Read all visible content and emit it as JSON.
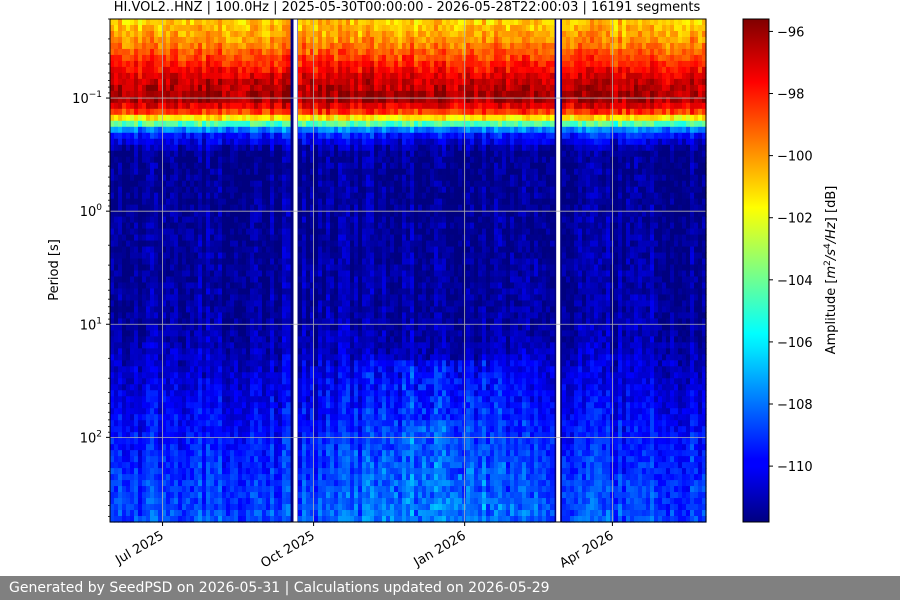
{
  "chart_data": {
    "type": "heatmap",
    "title": "HI.VOL2..HNZ | 100.0Hz | 2025-05-30T00:00:00 - 2026-05-28T22:00:03 | 16191 segments",
    "ylabel": "Period [s]",
    "colorbar_label_parts": [
      "Amplitude [",
      "m",
      "2",
      "/",
      "s",
      "4",
      "/",
      "Hz",
      "] [dB]"
    ],
    "x_ticks": [
      "Jul 2025",
      "Oct 2025",
      "Jan 2026",
      "Apr 2026"
    ],
    "x_range": [
      "2025-05-30",
      "2026-05-28"
    ],
    "y_scale": "log",
    "y_range": [
      0.02,
      560
    ],
    "y_ticks": [
      {
        "base": "10",
        "exp": "−1",
        "value": 0.1
      },
      {
        "base": "10",
        "exp": "0",
        "value": 1
      },
      {
        "base": "10",
        "exp": "1",
        "value": 10
      },
      {
        "base": "10",
        "exp": "2",
        "value": 100
      }
    ],
    "colorbar_ticks": [
      {
        "label": "−96",
        "value": -96
      },
      {
        "label": "−98",
        "value": -98
      },
      {
        "label": "−100",
        "value": -100
      },
      {
        "label": "−102",
        "value": -102
      },
      {
        "label": "−104",
        "value": -104
      },
      {
        "label": "−106",
        "value": -106
      },
      {
        "label": "−108",
        "value": -108
      },
      {
        "label": "−110",
        "value": -110
      }
    ],
    "color_range": [
      -111.8,
      -95.6
    ],
    "colormap": "jet",
    "grid": true,
    "data_gaps": [
      "2025-09-20",
      "2026-02-27"
    ],
    "amplitude_profile_by_period": [
      {
        "period": 0.02,
        "db": -101
      },
      {
        "period": 0.03,
        "db": -100
      },
      {
        "period": 0.045,
        "db": -98.5
      },
      {
        "period": 0.07,
        "db": -96.8
      },
      {
        "period": 0.1,
        "db": -96
      },
      {
        "period": 0.13,
        "db": -98
      },
      {
        "period": 0.16,
        "db": -103
      },
      {
        "period": 0.2,
        "db": -109
      },
      {
        "period": 0.3,
        "db": -111.5
      },
      {
        "period": 10,
        "db": -111.2
      },
      {
        "period": 100,
        "db": -109.5
      },
      {
        "period": 560,
        "db": -108.5
      }
    ]
  },
  "footer": {
    "text": "Generated by SeedPSD on 2026-05-31 | Calculations updated on 2026-05-29"
  }
}
